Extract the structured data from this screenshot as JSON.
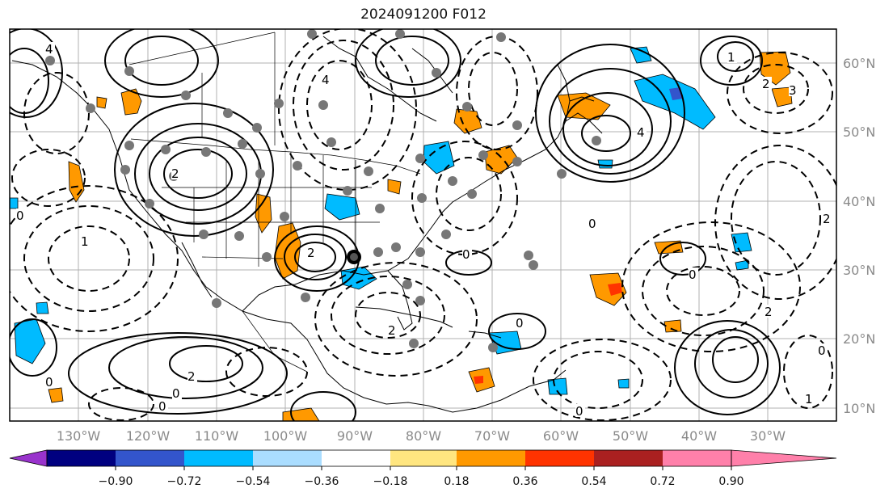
{
  "title": "2024091200 F012",
  "lon_labels": [
    "130°W",
    "120°W",
    "110°W",
    "100°W",
    "90°W",
    "80°W",
    "70°W",
    "60°W",
    "50°W",
    "40°W",
    "30°W"
  ],
  "lat_labels": [
    "60°N",
    "50°N",
    "40°N",
    "30°N",
    "20°N",
    "10°N"
  ],
  "colorbar": {
    "ticks": [
      "−0.90",
      "−0.72",
      "−0.54",
      "−0.36",
      "−0.18",
      "0.18",
      "0.36",
      "0.54",
      "0.72",
      "0.90"
    ],
    "colors": [
      "#9933cc",
      "#000080",
      "#3355cc",
      "#00bbff",
      "#aaddff",
      "#ffffff",
      "#ffe680",
      "#ff9900",
      "#ff3300",
      "#aa2020",
      "#ff80aa"
    ]
  },
  "contour_labels": [
    "0",
    "1",
    "2",
    "3",
    "4"
  ]
}
